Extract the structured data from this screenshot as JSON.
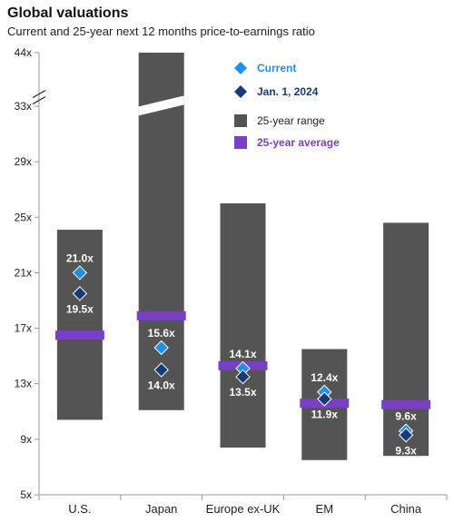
{
  "header": {
    "title": "Global valuations",
    "subtitle": "Current and 25-year next 12 months price-to-earnings ratio"
  },
  "colors": {
    "range": "#545454",
    "average": "#7a3fc4",
    "current": "#1e90e8",
    "jan2024": "#173a7a",
    "axis": "#999999"
  },
  "chart_data": {
    "type": "range-bar",
    "title": "Global valuations",
    "subtitle": "Current and 25-year next 12 months price-to-earnings ratio",
    "categories": [
      "U.S.",
      "Japan",
      "Europe ex-UK",
      "EM",
      "China"
    ],
    "yticks": [
      "5x",
      "9x",
      "13x",
      "17x",
      "21x",
      "25x",
      "29x",
      "33x",
      "44x"
    ],
    "ylim": [
      5,
      44
    ],
    "axis_break": "between 33x and 44x",
    "series": [
      {
        "name": "25-year range",
        "low": [
          10.4,
          11.1,
          8.4,
          7.5,
          7.8
        ],
        "high": [
          24.1,
          44,
          26.0,
          15.5,
          24.6
        ],
        "clipped_top": [
          false,
          true,
          false,
          false,
          false
        ]
      },
      {
        "name": "25-year average",
        "values": [
          16.5,
          17.9,
          14.3,
          11.6,
          11.5
        ]
      },
      {
        "name": "Current",
        "values": [
          21.0,
          15.6,
          14.1,
          12.4,
          9.6
        ],
        "labels": [
          "21.0x",
          "15.6x",
          "14.1x",
          "12.4x",
          "9.6x"
        ]
      },
      {
        "name": "Jan. 1, 2024",
        "values": [
          19.5,
          14.0,
          13.5,
          11.9,
          9.3
        ],
        "labels": [
          "19.5x",
          "14.0x",
          "13.5x",
          "11.9x",
          "9.3x"
        ]
      }
    ],
    "legend": [
      "Current",
      "Jan. 1, 2024",
      "25-year range",
      "25-year average"
    ],
    "legend_placement": "top-right",
    "grid": false
  }
}
